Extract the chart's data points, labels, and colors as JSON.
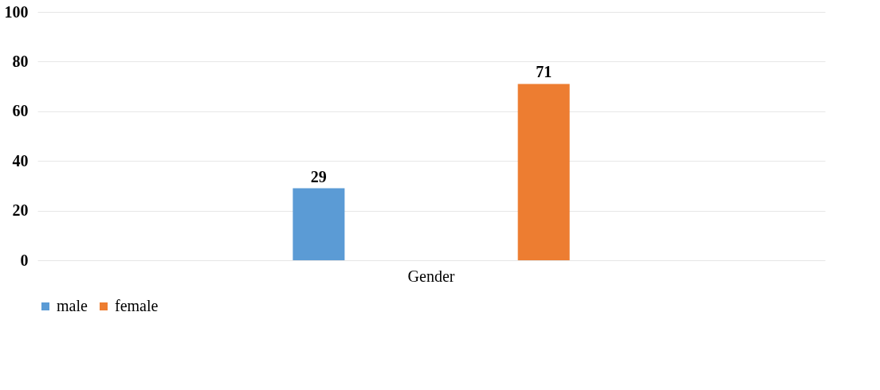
{
  "chart_data": {
    "type": "bar",
    "categories": [
      "Gender"
    ],
    "series": [
      {
        "name": "male",
        "color": "#5b9bd5",
        "values": [
          29
        ]
      },
      {
        "name": "female",
        "color": "#ed7d31",
        "values": [
          71
        ]
      }
    ],
    "ylim": [
      0,
      100
    ],
    "yticks": [
      0,
      20,
      40,
      60,
      80,
      100
    ],
    "grid": "y",
    "legend": "bottom",
    "data_labels": true
  }
}
